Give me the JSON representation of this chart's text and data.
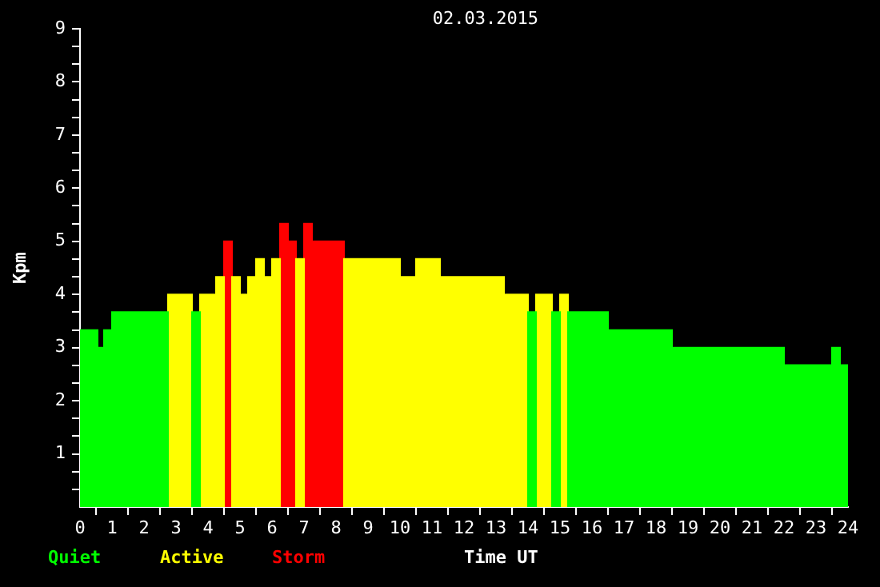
{
  "chart_data": {
    "type": "histogram",
    "title": "02.03.2015",
    "xlabel": "Time UT",
    "ylabel": "Kpm",
    "bins": [
      0,
      0.55,
      0.75,
      1,
      2.75,
      3.5,
      3.75,
      4.25,
      4.5,
      4.75,
      5,
      5.25,
      5.5,
      5.75,
      6,
      6.25,
      6.5,
      6.75,
      7,
      7.25,
      8.25,
      10,
      10.5,
      11.25,
      13.25,
      14,
      14.25,
      14.75,
      15,
      15.25,
      16.5,
      18.5,
      22,
      23.5,
      23.75,
      24
    ],
    "series": [
      {
        "name": "Quiet",
        "color": "#00ff00",
        "values": [
          3.33,
          3,
          3.33,
          3.67,
          null,
          3.67,
          null,
          null,
          null,
          null,
          null,
          null,
          null,
          null,
          null,
          null,
          null,
          null,
          null,
          null,
          null,
          null,
          null,
          null,
          null,
          3.67,
          null,
          3.67,
          null,
          3.67,
          3.33,
          3,
          2.67,
          3,
          2.67
        ]
      },
      {
        "name": "Active",
        "color": "#ffff00",
        "values": [
          null,
          null,
          null,
          null,
          4,
          null,
          4,
          4.33,
          null,
          4.33,
          4,
          4.33,
          4.67,
          4.33,
          4.67,
          null,
          null,
          4.67,
          null,
          null,
          4.67,
          4.33,
          4.67,
          4.33,
          4,
          null,
          4,
          null,
          4,
          null,
          null,
          null,
          null,
          null,
          null
        ]
      },
      {
        "name": "Storm",
        "color": "#ff0000",
        "values": [
          null,
          null,
          null,
          null,
          null,
          null,
          null,
          null,
          5,
          null,
          null,
          null,
          null,
          null,
          null,
          5.33,
          5,
          null,
          5.33,
          5,
          null,
          null,
          null,
          null,
          null,
          null,
          null,
          null,
          null,
          null,
          null,
          null,
          null,
          null,
          null
        ]
      }
    ],
    "xlim": [
      0,
      24
    ],
    "xticks": [
      0,
      1,
      2,
      3,
      4,
      5,
      6,
      7,
      8,
      9,
      10,
      11,
      12,
      13,
      14,
      15,
      16,
      17,
      18,
      19,
      20,
      21,
      22,
      23,
      24
    ],
    "ylim": [
      0,
      9
    ],
    "yticks": [
      {
        "value": 0.333,
        "label": null
      },
      {
        "value": 0.667,
        "label": null
      },
      1,
      {
        "value": 1.333,
        "label": null
      },
      {
        "value": 1.667,
        "label": null
      },
      2,
      {
        "value": 2.333,
        "label": null
      },
      {
        "value": 2.667,
        "label": null
      },
      3,
      {
        "value": 3.333,
        "label": null
      },
      {
        "value": 3.667,
        "label": null
      },
      4,
      {
        "value": 4.333,
        "label": null
      },
      {
        "value": 4.667,
        "label": null
      },
      5,
      {
        "value": 5.333,
        "label": null
      },
      {
        "value": 5.667,
        "label": null
      },
      6,
      {
        "value": 6.333,
        "label": null
      },
      {
        "value": 6.667,
        "label": null
      },
      7,
      {
        "value": 7.333,
        "label": null
      },
      {
        "value": 7.667,
        "label": null
      },
      8,
      {
        "value": 8.333,
        "label": null
      },
      {
        "value": 8.667,
        "label": null
      },
      9
    ],
    "grid": false,
    "legend": "bottom left"
  }
}
